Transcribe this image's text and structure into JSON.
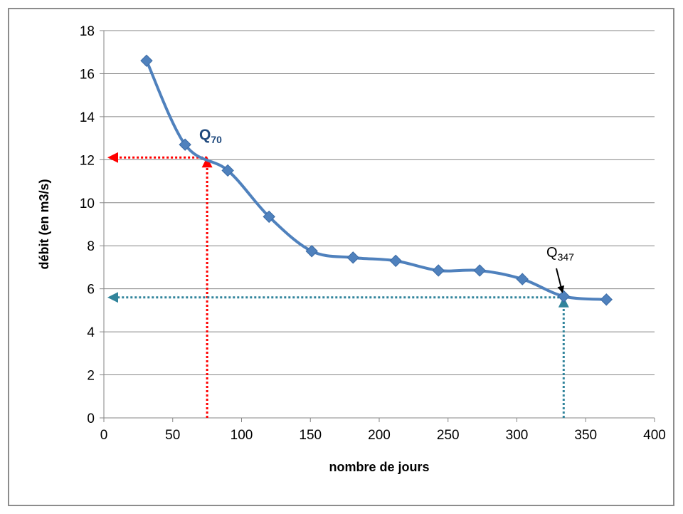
{
  "chart_data": {
    "type": "line",
    "title": "",
    "xlabel": "nombre de jours",
    "ylabel": "débit (en m3/s)",
    "xlim": [
      0,
      400
    ],
    "ylim": [
      0,
      18
    ],
    "x_ticks": [
      0,
      50,
      100,
      150,
      200,
      250,
      300,
      350,
      400
    ],
    "y_ticks": [
      0,
      2,
      4,
      6,
      8,
      10,
      12,
      14,
      16,
      18
    ],
    "grid": "horizontal",
    "legend": "none",
    "series": [
      {
        "color": "#4f81bd",
        "marker": "diamond",
        "smooth": true,
        "x": [
          31,
          59,
          90,
          120,
          151,
          181,
          212,
          243,
          273,
          304,
          334,
          365
        ],
        "y": [
          16.6,
          12.7,
          11.5,
          9.35,
          7.75,
          7.45,
          7.3,
          6.85,
          6.85,
          6.45,
          5.65,
          5.5
        ]
      }
    ],
    "annotations": [
      {
        "label_main": "Q",
        "label_sub": "70",
        "color": "#1f497d",
        "bold": true,
        "point": [
          75,
          12.1
        ],
        "guide_color": "#ff0000"
      },
      {
        "label_main": "Q",
        "label_sub": "347",
        "color": "#000000",
        "bold": false,
        "point": [
          334,
          5.6
        ],
        "guide_color": "#31849b"
      }
    ]
  }
}
